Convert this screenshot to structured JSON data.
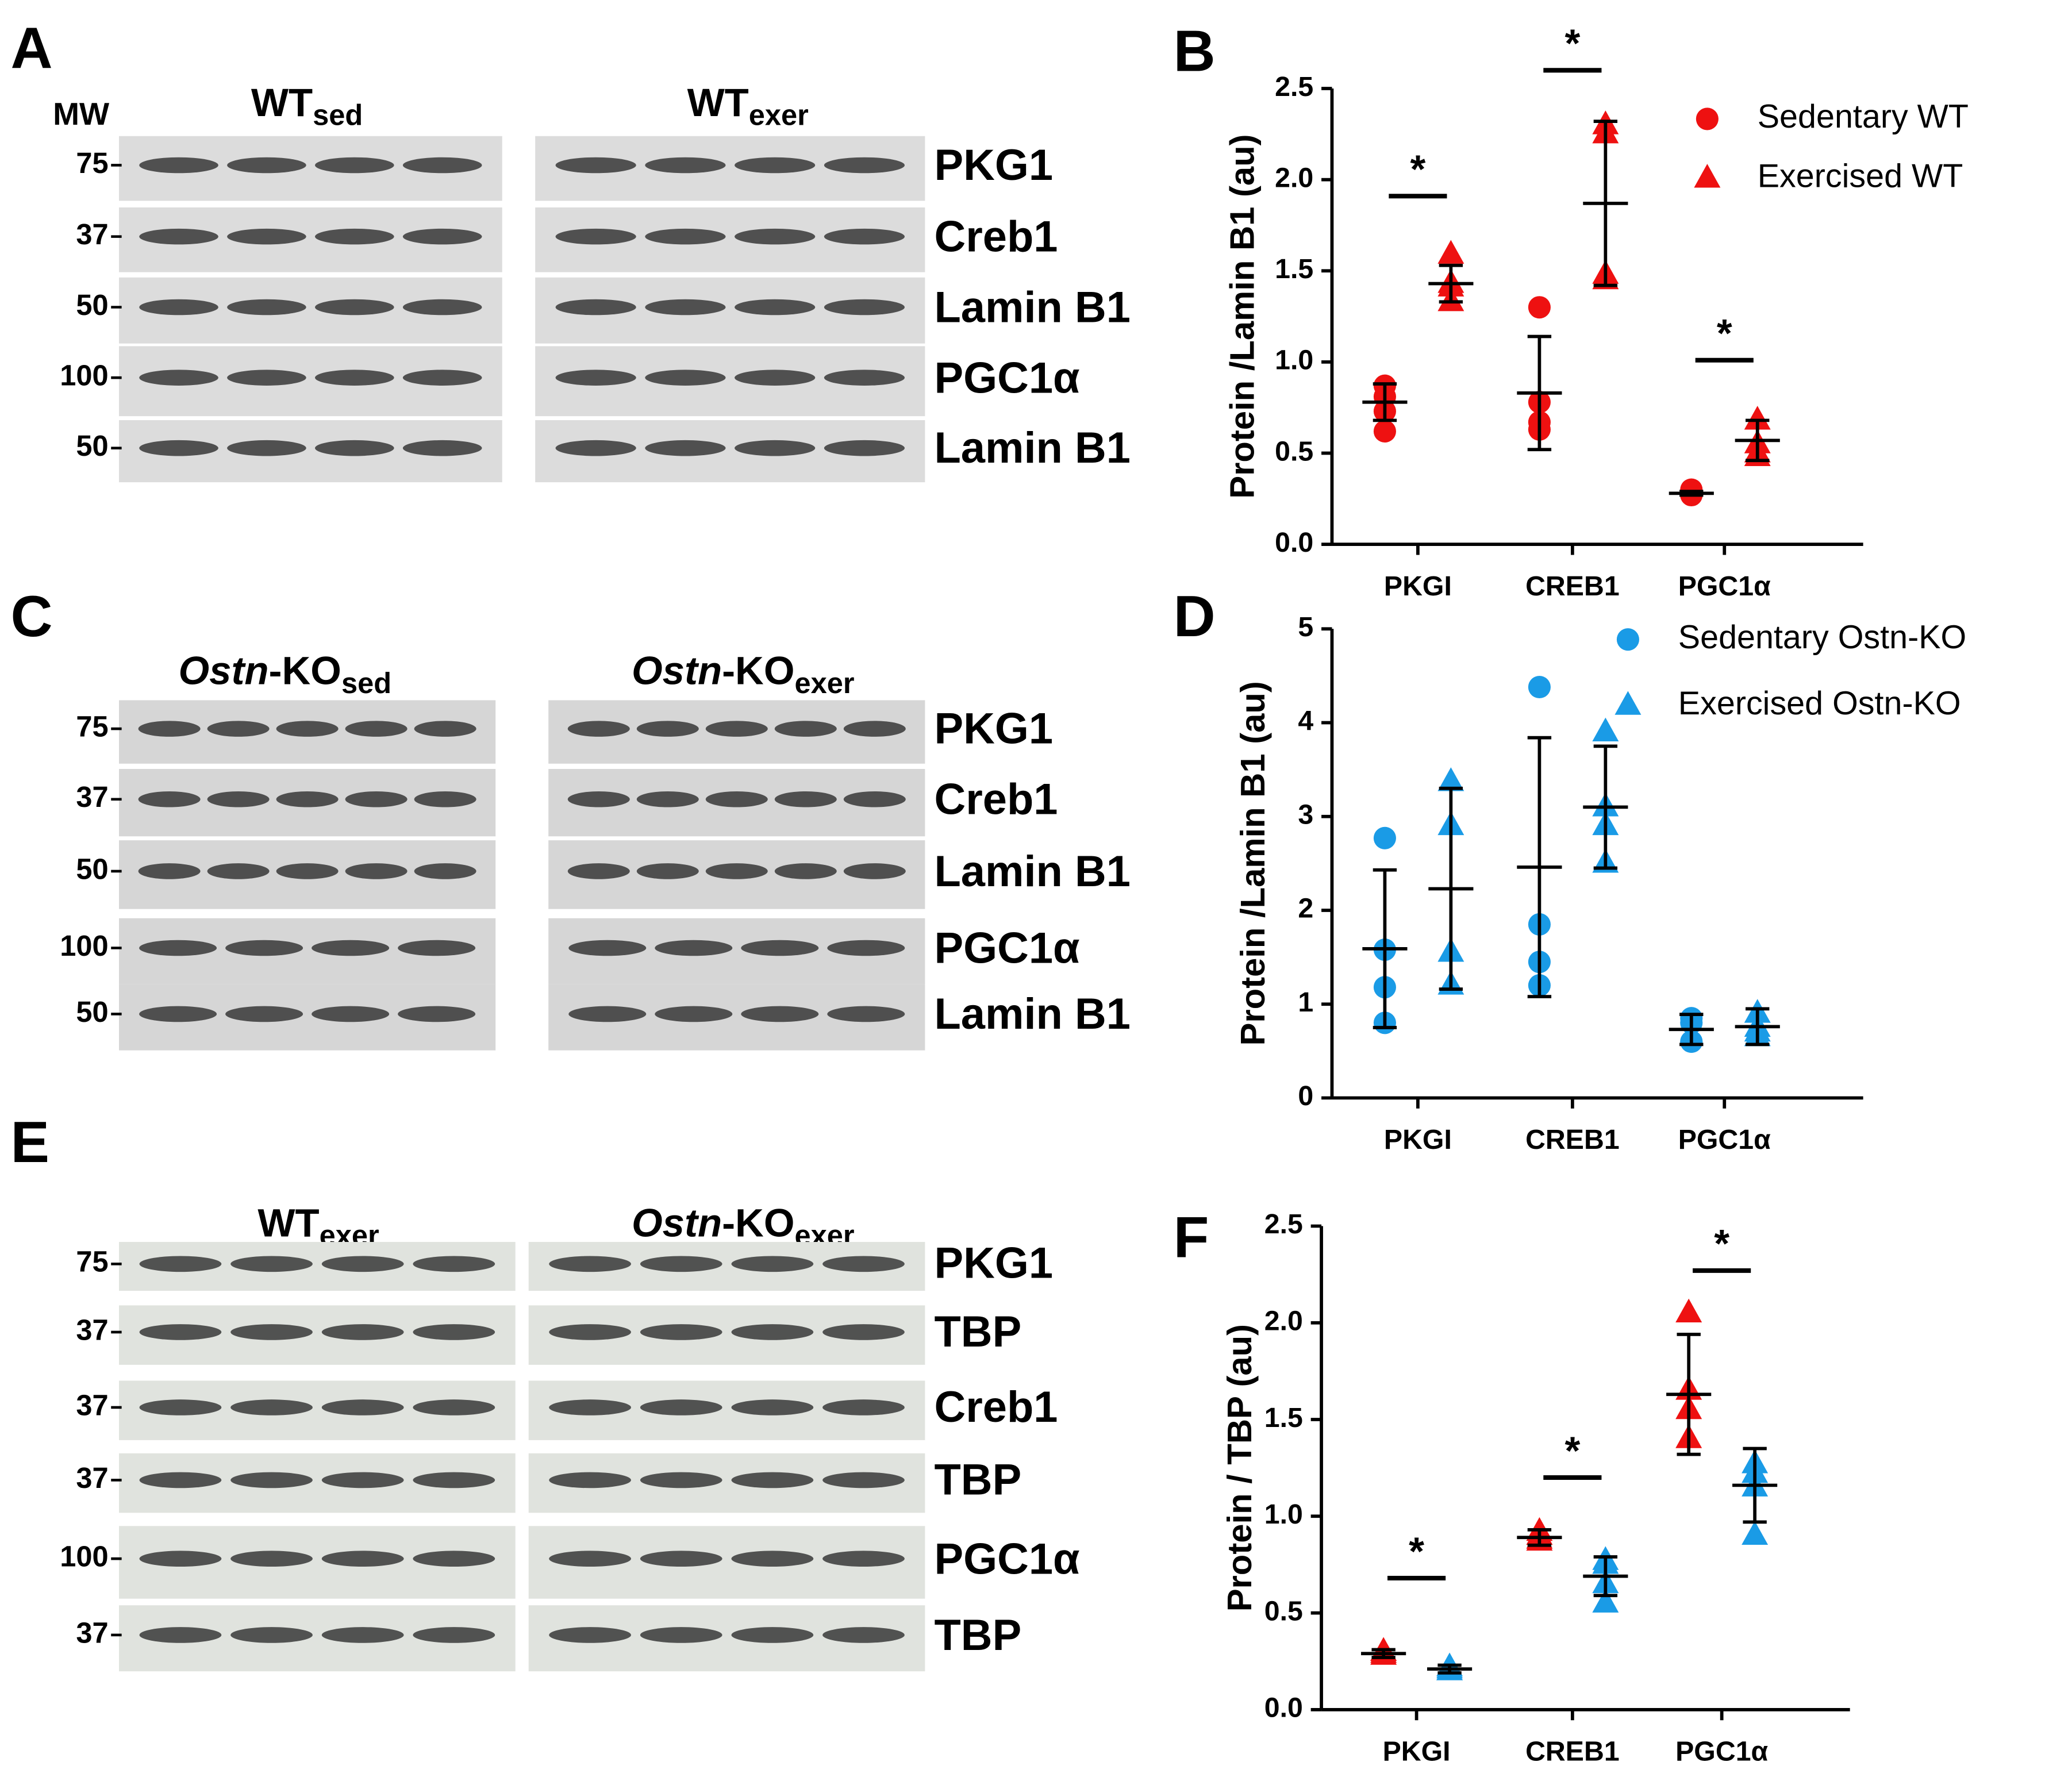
{
  "blots": [
    {
      "letter": "A",
      "mw_title": "MW",
      "groups": [
        [
          {
            "text": "WT"
          },
          {
            "text": "sed",
            "style": "sub"
          }
        ],
        [
          {
            "text": "WT"
          },
          {
            "text": "exer",
            "style": "sub"
          }
        ]
      ],
      "strips": [
        {
          "label": "PKG1",
          "mw": 75
        },
        {
          "label": "Creb1",
          "mw": 37
        },
        {
          "label": "Lamin B1",
          "mw": 50
        },
        {
          "label": "PGC1α",
          "mw": 100
        },
        {
          "label": "Lamin B1",
          "mw": 50
        }
      ]
    },
    {
      "letter": "C",
      "groups": [
        [
          {
            "text": "Ostn",
            "style": "italic"
          },
          {
            "text": "-KO"
          },
          {
            "text": "sed",
            "style": "sub"
          }
        ],
        [
          {
            "text": "Ostn",
            "style": "italic"
          },
          {
            "text": "-KO"
          },
          {
            "text": "exer",
            "style": "sub"
          }
        ]
      ],
      "strips": [
        {
          "label": "PKG1",
          "mw": 75
        },
        {
          "label": "Creb1",
          "mw": 37
        },
        {
          "label": "Lamin B1",
          "mw": 50
        },
        {
          "label": "PGC1α",
          "mw": 100
        },
        {
          "label": "Lamin B1",
          "mw": 50
        }
      ]
    },
    {
      "letter": "E",
      "groups": [
        [
          {
            "text": "WT"
          },
          {
            "text": "exer",
            "style": "sub"
          }
        ],
        [
          {
            "text": "Ostn",
            "style": "italic"
          },
          {
            "text": "-KO"
          },
          {
            "text": "exer",
            "style": "sub"
          }
        ]
      ],
      "strips": [
        {
          "label": "PKG1",
          "mw": 75
        },
        {
          "label": "TBP",
          "mw": 37
        },
        {
          "label": "Creb1",
          "mw": 37
        },
        {
          "label": "TBP",
          "mw": 37
        },
        {
          "label": "PGC1α",
          "mw": 100
        },
        {
          "label": "TBP",
          "mw": 37
        }
      ]
    }
  ],
  "chart_data": [
    {
      "type": "scatter",
      "letter": "B",
      "y_label": "Protein /Lamin B1 (au)",
      "categories": [
        "PKGI",
        "CREB1",
        "PGC1α"
      ],
      "ylim": [
        0,
        2.5
      ],
      "yticks": [
        {
          "value": 0,
          "label": "0.0"
        },
        0.5,
        {
          "value": 1,
          "label": "1.0"
        },
        1.5,
        {
          "value": 2,
          "label": "2.0"
        },
        2.5
      ],
      "legend": true,
      "series": [
        {
          "name": "Sedentary WT",
          "color": "#ee1111",
          "marker": "circle",
          "points": [
            [
              0.87,
              0.81,
              0.73,
              0.62
            ],
            [
              1.3,
              0.78,
              0.67,
              0.63
            ],
            [
              0.3,
              0.29,
              0.28,
              0.27
            ]
          ],
          "mean": [
            0.78,
            0.83,
            0.28
          ],
          "sd": [
            0.1,
            0.31,
            0.01
          ]
        },
        {
          "name": "Exercised WT",
          "color": "#ee1111",
          "marker": "triangle",
          "points": [
            [
              1.59,
              1.43,
              1.41,
              1.33
            ],
            [
              2.3,
              2.25,
              1.48,
              1.45
            ],
            [
              0.68,
              0.55,
              0.5,
              0.48
            ]
          ],
          "mean": [
            1.43,
            1.87,
            0.57
          ],
          "sd": [
            0.1,
            0.45,
            0.11
          ]
        }
      ],
      "annotations": [
        {
          "text": "*",
          "category": "PKGI",
          "y": 1.91
        },
        {
          "text": "*",
          "category": "CREB1",
          "y": 2.6
        },
        {
          "text": "*",
          "category": "PGC1α",
          "y": 1.01
        }
      ]
    },
    {
      "type": "scatter",
      "letter": "D",
      "y_label": "Protein /Lamin B1 (au)",
      "categories": [
        "PKGI",
        "CREB1",
        "PGC1α"
      ],
      "ylim": [
        0,
        5
      ],
      "yticks": [
        0,
        1,
        2,
        3,
        4,
        5
      ],
      "legend": true,
      "series": [
        {
          "name": "Sedentary Ostn-KO",
          "color": "#1a9be6",
          "marker": "circle",
          "points": [
            [
              2.77,
              1.58,
              1.18,
              0.8
            ],
            [
              4.38,
              1.85,
              1.45,
              1.2
            ],
            [
              0.85,
              0.8,
              0.6,
              0.6
            ]
          ],
          "mean": [
            1.59,
            2.46,
            0.73
          ],
          "sd": [
            0.84,
            1.38,
            0.16
          ]
        },
        {
          "name": "Exercised Ostn-KO",
          "color": "#1a9be6",
          "marker": "triangle",
          "points": [
            [
              3.37,
              2.9,
              1.55,
              1.2
            ],
            [
              3.9,
              3.1,
              2.9,
              2.5
            ],
            [
              0.9,
              0.75,
              0.7,
              0.65
            ]
          ],
          "mean": [
            2.23,
            3.1,
            0.76
          ],
          "sd": [
            1.07,
            0.65,
            0.19
          ]
        }
      ]
    },
    {
      "type": "scatter",
      "letter": "F",
      "y_label": "Protein / TBP (au)",
      "categories": [
        "PKGI",
        "CREB1",
        "PGC1α"
      ],
      "ylim": [
        0,
        2.5
      ],
      "yticks": [
        {
          "value": 0,
          "label": "0.0"
        },
        0.5,
        {
          "value": 1,
          "label": "1.0"
        },
        1.5,
        {
          "value": 2,
          "label": "2.0"
        },
        2.5
      ],
      "legend": false,
      "series": [
        {
          "color": "#ee1111",
          "marker": "triangle",
          "points": [
            [
              0.3,
              0.3,
              0.29,
              0.28
            ],
            [
              0.92,
              0.9,
              0.88,
              0.87
            ],
            [
              2.05,
              1.65,
              1.55,
              1.4
            ]
          ],
          "mean": [
            0.29,
            0.89,
            1.63
          ],
          "sd": [
            0.02,
            0.04,
            0.31
          ]
        },
        {
          "color": "#1a9be6",
          "marker": "triangle",
          "points": [
            [
              0.22,
              0.21,
              0.2,
              0.2
            ],
            [
              0.77,
              0.75,
              0.65,
              0.55
            ],
            [
              1.27,
              1.22,
              1.15,
              0.9
            ]
          ],
          "mean": [
            0.21,
            0.69,
            1.16
          ],
          "sd": [
            0.02,
            0.1,
            0.19
          ]
        }
      ],
      "annotations": [
        {
          "text": "*",
          "category": "PKGI",
          "y": 0.68
        },
        {
          "text": "*",
          "category": "CREB1",
          "y": 1.2
        },
        {
          "text": "*",
          "category": "PGC1α",
          "y": 2.27
        }
      ]
    }
  ]
}
